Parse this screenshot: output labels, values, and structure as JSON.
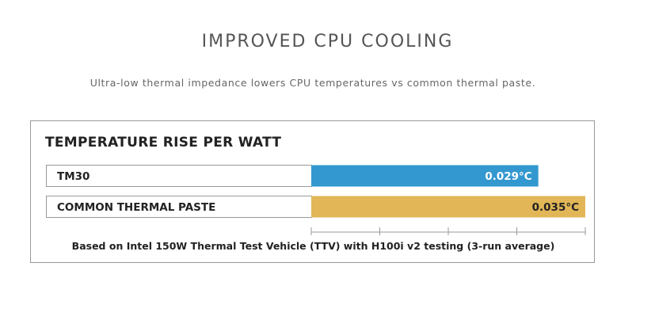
{
  "header": {
    "title": "IMPROVED CPU COOLING",
    "subtitle": "Ultra-low thermal impedance lowers CPU temperatures vs common thermal paste."
  },
  "chart_data": {
    "type": "bar",
    "orientation": "horizontal",
    "title": "TEMPERATURE RISE PER WATT",
    "categories": [
      "TM30",
      "COMMON THERMAL PASTE"
    ],
    "values": [
      0.029,
      0.035
    ],
    "value_labels": [
      "0.029°C",
      "0.035°C"
    ],
    "unit": "°C",
    "colors": [
      "#3398cf",
      "#e2b657"
    ],
    "xlim": [
      0,
      0.035
    ],
    "grid": false,
    "footnote": "Based on Intel 150W Thermal Test Vehicle (TTV) with H100i v2 testing (3-run average)"
  }
}
